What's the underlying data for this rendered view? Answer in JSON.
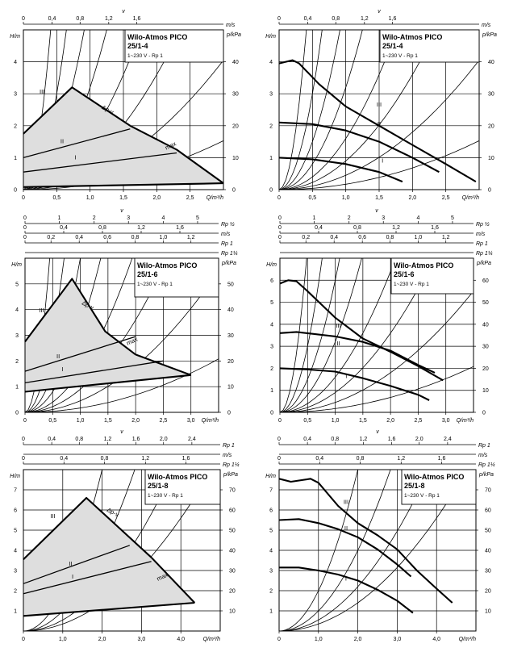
{
  "chart_data": [
    {
      "id": "p1",
      "type": "line",
      "title": "Wilo-Atmos PICO",
      "subtitle": "25/1-4",
      "supply": "1~230 V - Rp 1",
      "xlabel": "Q/m³/h",
      "ylabel": "H/m",
      "y2label": "p/kPa",
      "xlim": [
        0,
        3
      ],
      "ylim": [
        0,
        5
      ],
      "y2lim": [
        0,
        50
      ],
      "xticks": [
        "0",
        "0,5",
        "1,0",
        "1,5",
        "2,0",
        "2,5"
      ],
      "yticks": [
        "0",
        "1",
        "2",
        "3",
        "4"
      ],
      "y2ticks": [
        "0",
        "10",
        "20",
        "30",
        "40"
      ],
      "top_scales": [
        {
          "unit": "m/s",
          "symbol": "v",
          "ticks": [
            "0",
            "0,4",
            "0,8",
            "1,2",
            "1,6"
          ],
          "xs": [
            0,
            0.43,
            0.85,
            1.28,
            1.7
          ]
        }
      ],
      "curve_labels": [
        "III",
        "II",
        "I",
        "Δp-v",
        "max"
      ],
      "series": [
        {
          "name": "III (Δp-v)",
          "x": [
            0,
            0.73,
            1.6
          ],
          "y": [
            1.75,
            3.2,
            2.0
          ]
        },
        {
          "name": "II",
          "x": [
            0,
            1.6
          ],
          "y": [
            1.0,
            1.9
          ]
        },
        {
          "name": "I",
          "x": [
            0,
            2.3
          ],
          "y": [
            0.55,
            1.15
          ]
        },
        {
          "name": "max",
          "x": [
            1.6,
            2.3,
            3.0
          ],
          "y": [
            2.0,
            1.25,
            0.2
          ]
        },
        {
          "name": "min",
          "x": [
            0,
            3.0
          ],
          "y": [
            0.08,
            0.2
          ]
        }
      ]
    },
    {
      "id": "p2",
      "type": "line",
      "title": "Wilo-Atmos PICO",
      "subtitle": "25/1-4",
      "supply": "1~230 V - Rp 1",
      "xlabel": "Q/m³/h",
      "ylabel": "H/m",
      "y2label": "p/kPa",
      "xlim": [
        0,
        3
      ],
      "ylim": [
        0,
        5
      ],
      "y2lim": [
        0,
        50
      ],
      "xticks": [
        "0",
        "0,5",
        "1,0",
        "1,5",
        "2,0",
        "2,5"
      ],
      "yticks": [
        "0",
        "1",
        "2",
        "3",
        "4"
      ],
      "y2ticks": [
        "0",
        "10",
        "20",
        "30",
        "40"
      ],
      "top_scales": [
        {
          "unit": "m/s",
          "symbol": "v",
          "ticks": [
            "0",
            "0,4",
            "0,8",
            "1,2",
            "1,6"
          ],
          "xs": [
            0,
            0.43,
            0.85,
            1.28,
            1.7
          ]
        }
      ],
      "curve_labels": [
        "III",
        "II",
        "I"
      ],
      "series": [
        {
          "name": "III",
          "x": [
            0,
            0.2,
            0.3,
            0.6,
            1.0,
            1.5,
            2.0,
            2.5,
            2.95
          ],
          "y": [
            3.95,
            4.05,
            3.95,
            3.3,
            2.6,
            2.0,
            1.4,
            0.8,
            0.25
          ]
        },
        {
          "name": "II",
          "x": [
            0,
            0.5,
            1.0,
            1.5,
            2.0,
            2.4
          ],
          "y": [
            2.1,
            2.05,
            1.85,
            1.5,
            1.0,
            0.55
          ]
        },
        {
          "name": "I",
          "x": [
            0,
            0.5,
            1.0,
            1.5,
            1.85
          ],
          "y": [
            1.0,
            0.95,
            0.8,
            0.55,
            0.25
          ]
        }
      ]
    },
    {
      "id": "p3",
      "type": "line",
      "title": "Wilo-Atmos PICO",
      "subtitle": "25/1-6",
      "supply": "1~230 V - Rp 1",
      "xlabel": "Q/m³/h",
      "ylabel": "H/m",
      "y2label": "p/kPa",
      "xlim": [
        0,
        3.5
      ],
      "ylim": [
        0,
        6
      ],
      "y2lim": [
        0,
        60
      ],
      "xticks": [
        "0",
        "0,5",
        "1,0",
        "1,5",
        "2,0",
        "2,5",
        "3,0"
      ],
      "yticks": [
        "0",
        "1",
        "2",
        "3",
        "4",
        "5"
      ],
      "y2ticks": [
        "0",
        "10",
        "20",
        "30",
        "40",
        "50"
      ],
      "top_scales": [
        {
          "unit": "Rp ½",
          "symbol": "v",
          "ticks": [
            "0",
            "1",
            "2",
            "3",
            "4",
            "5"
          ],
          "xs": [
            0,
            0.62,
            1.25,
            1.87,
            2.5,
            3.12
          ]
        },
        {
          "unit": "m/s",
          "ticks": [
            "0",
            "0,4",
            "0,8",
            "1,2",
            "1,6"
          ],
          "xs": [
            0,
            0.7,
            1.4,
            2.1,
            2.8
          ]
        },
        {
          "unit": "Rp 1",
          "ticks": [
            "0",
            "0,2",
            "0,4",
            "0,6",
            "0,8",
            "1,0",
            "1,2"
          ],
          "xs": [
            0,
            0.47,
            0.98,
            1.49,
            1.99,
            2.5,
            3.0
          ]
        },
        {
          "unit": "Rp 1¼",
          "ticks": [],
          "xs": []
        }
      ],
      "curve_labels": [
        "III",
        "II",
        "I",
        "Δp-v",
        "max"
      ],
      "series": [
        {
          "name": "III (Δp-v)",
          "x": [
            0,
            0.85,
            1.45,
            2.0
          ],
          "y": [
            2.75,
            5.2,
            3.15,
            2.25
          ]
        },
        {
          "name": "II",
          "x": [
            0,
            2.0
          ],
          "y": [
            1.6,
            2.95
          ]
        },
        {
          "name": "I",
          "x": [
            0,
            2.5
          ],
          "y": [
            1.15,
            2.0
          ]
        },
        {
          "name": "max",
          "x": [
            2.0,
            3.0
          ],
          "y": [
            2.25,
            1.45
          ]
        },
        {
          "name": "min",
          "x": [
            0,
            3.0
          ],
          "y": [
            0.8,
            1.45
          ]
        }
      ]
    },
    {
      "id": "p4",
      "type": "line",
      "title": "Wilo-Atmos PICO",
      "subtitle": "25/1-6",
      "supply": "1~230 V - Rp 1",
      "xlabel": "Q/m³/h",
      "ylabel": "H/m",
      "y2label": "p/kPa",
      "xlim": [
        0,
        3.5
      ],
      "ylim": [
        0,
        7
      ],
      "y2lim": [
        0,
        70
      ],
      "xticks": [
        "0",
        "0,5",
        "1,0",
        "1,5",
        "2,0",
        "2,5",
        "3,0"
      ],
      "yticks": [
        "0",
        "1",
        "2",
        "3",
        "4",
        "5",
        "6"
      ],
      "y2ticks": [
        "0",
        "10",
        "20",
        "30",
        "40",
        "50",
        "60"
      ],
      "top_scales": [
        {
          "unit": "Rp ½",
          "symbol": "v",
          "ticks": [
            "0",
            "1",
            "2",
            "3",
            "4",
            "5"
          ],
          "xs": [
            0,
            0.62,
            1.25,
            1.87,
            2.5,
            3.12
          ]
        },
        {
          "unit": "m/s",
          "ticks": [
            "0",
            "0,4",
            "0,8",
            "1,2",
            "1,6"
          ],
          "xs": [
            0,
            0.7,
            1.4,
            2.1,
            2.8
          ]
        },
        {
          "unit": "Rp 1",
          "ticks": [
            "0",
            "0,2",
            "0,4",
            "0,6",
            "0,8",
            "1,0",
            "1,2"
          ],
          "xs": [
            0,
            0.47,
            0.98,
            1.49,
            1.99,
            2.5,
            3.0
          ]
        },
        {
          "unit": "Rp 1¼",
          "ticks": [],
          "xs": []
        }
      ],
      "curve_labels": [
        "III",
        "II",
        "I"
      ],
      "series": [
        {
          "name": "III",
          "x": [
            0,
            0.15,
            0.3,
            0.5,
            1.0,
            1.5,
            2.0,
            2.5,
            2.95
          ],
          "y": [
            5.85,
            6.0,
            5.95,
            5.5,
            4.3,
            3.35,
            2.75,
            2.1,
            1.45
          ]
        },
        {
          "name": "II",
          "x": [
            0,
            0.3,
            1.0,
            1.5,
            2.0,
            2.5,
            2.8
          ],
          "y": [
            3.6,
            3.65,
            3.45,
            3.2,
            2.8,
            2.15,
            1.8
          ]
        },
        {
          "name": "I",
          "x": [
            0,
            0.5,
            1.0,
            1.5,
            2.0,
            2.5,
            2.7
          ],
          "y": [
            2.0,
            1.95,
            1.85,
            1.55,
            1.2,
            0.8,
            0.55
          ]
        }
      ]
    },
    {
      "id": "p5",
      "type": "line",
      "title": "Wilo-Atmos PICO",
      "subtitle": "25/1-8",
      "supply": "1~230 V - Rp 1",
      "xlabel": "Q/m³/h",
      "ylabel": "H/m",
      "y2label": "p/kPa",
      "xlim": [
        0,
        5
      ],
      "ylim": [
        0,
        8
      ],
      "y2lim": [
        0,
        80
      ],
      "xticks": [
        "0",
        "1,0",
        "2,0",
        "3,0",
        "4,0"
      ],
      "yticks": [
        "1",
        "2",
        "3",
        "4",
        "5",
        "6",
        "7"
      ],
      "y2ticks": [
        "10",
        "20",
        "30",
        "40",
        "50",
        "60",
        "70"
      ],
      "top_scales": [
        {
          "unit": "Rp 1",
          "symbol": "v",
          "ticks": [
            "0",
            "0,4",
            "0,8",
            "1,2",
            "1,6",
            "2,0",
            "2,4"
          ],
          "xs": [
            0,
            0.72,
            1.42,
            2.14,
            2.86,
            3.56,
            4.28
          ]
        },
        {
          "unit": "m/s",
          "ticks": [],
          "xs": []
        },
        {
          "unit": "Rp 1¼",
          "ticks": [
            "0",
            "0,4",
            "0,8",
            "1,2",
            "1,6"
          ],
          "xs": [
            0,
            1.03,
            2.06,
            3.1,
            4.13
          ]
        }
      ],
      "curve_labels": [
        "III",
        "II",
        "I",
        "Δp-v",
        "max"
      ],
      "series": [
        {
          "name": "III (Δp-v)",
          "x": [
            0,
            1.6,
            3.25
          ],
          "y": [
            3.55,
            6.6,
            3.65
          ]
        },
        {
          "name": "II",
          "x": [
            0,
            2.7
          ],
          "y": [
            2.35,
            4.25
          ]
        },
        {
          "name": "I",
          "x": [
            0,
            3.25
          ],
          "y": [
            1.85,
            3.45
          ]
        },
        {
          "name": "max",
          "x": [
            3.25,
            4.35
          ],
          "y": [
            3.65,
            1.4
          ]
        },
        {
          "name": "min",
          "x": [
            0,
            4.35
          ],
          "y": [
            0.75,
            1.4
          ]
        }
      ]
    },
    {
      "id": "p6",
      "type": "line",
      "title": "Wilo-Atmos PICO",
      "subtitle": "25/1-8",
      "supply": "1~230 V - Rp 1",
      "xlabel": "Q/m³/h",
      "ylabel": "H/m",
      "y2label": "p/kPa",
      "xlim": [
        0,
        5
      ],
      "ylim": [
        0,
        8
      ],
      "y2lim": [
        0,
        80
      ],
      "xticks": [
        "0",
        "1,0",
        "2,0",
        "3,0",
        "4,0"
      ],
      "yticks": [
        "1",
        "2",
        "3",
        "4",
        "5",
        "6",
        "7"
      ],
      "y2ticks": [
        "10",
        "20",
        "30",
        "40",
        "50",
        "60",
        "70"
      ],
      "top_scales": [
        {
          "unit": "Rp 1",
          "symbol": "v",
          "ticks": [
            "0",
            "0,4",
            "0,8",
            "1,2",
            "1,6",
            "2,0",
            "2,4"
          ],
          "xs": [
            0,
            0.72,
            1.42,
            2.14,
            2.86,
            3.56,
            4.28
          ]
        },
        {
          "unit": "m/s",
          "ticks": [],
          "xs": []
        },
        {
          "unit": "Rp 1¼",
          "ticks": [
            "0",
            "0,4",
            "0,8",
            "1,2",
            "1,6"
          ],
          "xs": [
            0,
            1.03,
            2.06,
            3.1,
            4.13
          ]
        }
      ],
      "curve_labels": [
        "III",
        "II",
        "I"
      ],
      "series": [
        {
          "name": "III",
          "x": [
            0,
            0.3,
            0.8,
            1.0,
            1.5,
            2.0,
            2.5,
            3.0,
            3.5,
            4.0,
            4.4
          ],
          "y": [
            7.55,
            7.4,
            7.55,
            7.35,
            6.2,
            5.35,
            4.75,
            4.05,
            3.0,
            2.1,
            1.4
          ]
        },
        {
          "name": "II",
          "x": [
            0,
            0.5,
            1.0,
            1.5,
            2.0,
            2.5,
            3.0,
            3.35
          ],
          "y": [
            5.5,
            5.55,
            5.35,
            5.05,
            4.65,
            4.05,
            3.3,
            2.7
          ]
        },
        {
          "name": "I",
          "x": [
            0,
            0.5,
            1.0,
            1.5,
            2.0,
            2.5,
            3.0,
            3.4
          ],
          "y": [
            3.15,
            3.15,
            3.0,
            2.8,
            2.5,
            2.05,
            1.5,
            0.9
          ]
        }
      ]
    }
  ]
}
